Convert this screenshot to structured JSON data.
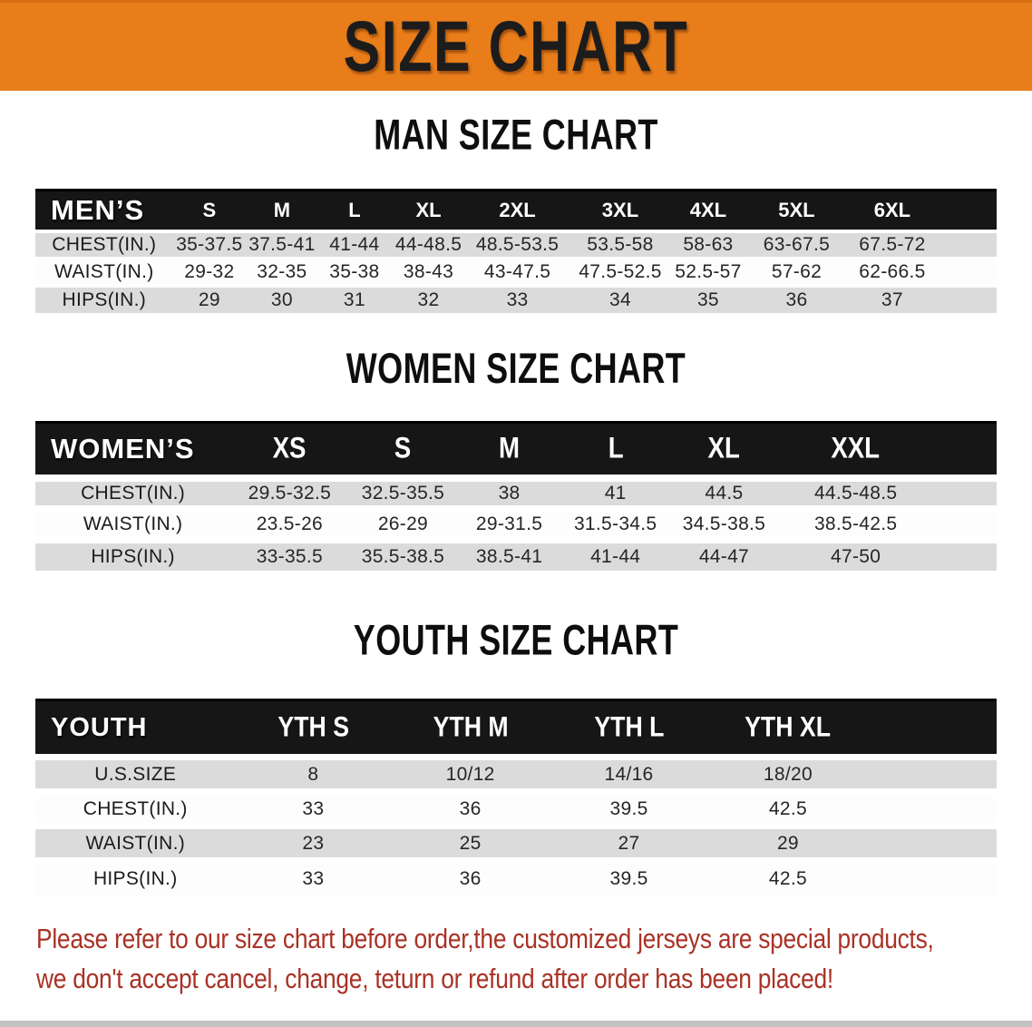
{
  "banner": {
    "title": "SIZE CHART",
    "bg_color": "#E87D1A",
    "text_color": "#1c1c1c"
  },
  "colors": {
    "table_header_bg": "#161616",
    "table_header_text": "#ffffff",
    "row_stripe_gray": "#DBDBDB",
    "row_stripe_white": "#FDFDFD",
    "disclaimer_red": "#A93226"
  },
  "tables": {
    "men": {
      "section_title": "MAN SIZE CHART",
      "header": [
        "MEN’S",
        "S",
        "M",
        "L",
        "XL",
        "2XL",
        "3XL",
        "4XL",
        "5XL",
        "6XL"
      ],
      "rows": [
        {
          "label": "CHEST(IN.)",
          "values": [
            "35-37.5",
            "37.5-41",
            "41-44",
            "44-48.5",
            "48.5-53.5",
            "53.5-58",
            "58-63",
            "63-67.5",
            "67.5-72"
          ]
        },
        {
          "label": "WAIST(IN.)",
          "values": [
            "29-32",
            "32-35",
            "35-38",
            "38-43",
            "43-47.5",
            "47.5-52.5",
            "52.5-57",
            "57-62",
            "62-66.5"
          ]
        },
        {
          "label": "HIPS(IN.)",
          "values": [
            "29",
            "30",
            "31",
            "32",
            "33",
            "34",
            "35",
            "36",
            "37"
          ]
        }
      ]
    },
    "women": {
      "section_title": "WOMEN SIZE CHART",
      "header": [
        "WOMEN’S",
        "XS",
        "S",
        "M",
        "L",
        "XL",
        "XXL"
      ],
      "rows": [
        {
          "label": "CHEST(IN.)",
          "values": [
            "29.5-32.5",
            "32.5-35.5",
            "38",
            "41",
            "44.5",
            "44.5-48.5"
          ]
        },
        {
          "label": "WAIST(IN.)",
          "values": [
            "23.5-26",
            "26-29",
            "29-31.5",
            "31.5-34.5",
            "34.5-38.5",
            "38.5-42.5"
          ]
        },
        {
          "label": "HIPS(IN.)",
          "values": [
            "33-35.5",
            "35.5-38.5",
            "38.5-41",
            "41-44",
            "44-47",
            "47-50"
          ]
        }
      ]
    },
    "youth": {
      "section_title": "YOUTH SIZE CHART",
      "header": [
        "YOUTH",
        "YTH S",
        "YTH M",
        "YTH L",
        "YTH XL"
      ],
      "rows": [
        {
          "label": "U.S.SIZE",
          "values": [
            "8",
            "10/12",
            "14/16",
            "18/20"
          ]
        },
        {
          "label": "CHEST(IN.)",
          "values": [
            "33",
            "36",
            "39.5",
            "42.5"
          ]
        },
        {
          "label": "WAIST(IN.)",
          "values": [
            "23",
            "25",
            "27",
            "29"
          ]
        },
        {
          "label": "HIPS(IN.)",
          "values": [
            "33",
            "36",
            "39.5",
            "42.5"
          ]
        }
      ]
    }
  },
  "disclaimer": {
    "line1": "Please refer to our size chart before order,the customized jerseys are special products,",
    "line2": "we don't accept cancel, change, teturn or refund after order has been placed!"
  }
}
